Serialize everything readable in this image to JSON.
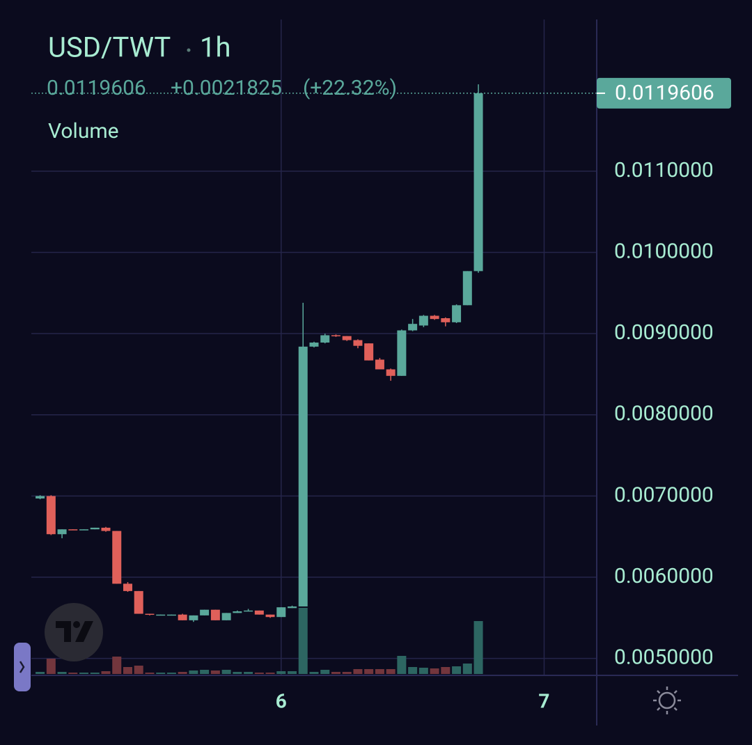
{
  "chart_data": {
    "type": "candlestick",
    "title": "USD/TWT",
    "interval": "1h",
    "change": {
      "value": 0.0021825,
      "label": "+0.0021825"
    },
    "change_percent": {
      "value": 22.32,
      "label": "(+22.32%)"
    },
    "volume_label": "Volume",
    "x": [
      5.0833,
      5.125,
      5.1667,
      5.2083,
      5.25,
      5.2917,
      5.3333,
      5.375,
      5.4167,
      5.4583,
      5.5,
      5.5417,
      5.5833,
      5.625,
      5.6667,
      5.7083,
      5.75,
      5.7917,
      5.8333,
      5.875,
      5.9167,
      5.9583,
      6,
      6.0417,
      6.0833,
      6.125,
      6.1667,
      6.2083,
      6.25,
      6.2917,
      6.3333,
      6.375,
      6.4167,
      6.4583,
      6.5,
      6.5417,
      6.5833,
      6.625,
      6.6667,
      6.7083,
      6.75
    ],
    "open": [
      0.00697,
      0.007,
      0.00653,
      0.00659,
      0.00658,
      0.00659,
      0.00661,
      0.00657,
      0.00592,
      0.00583,
      0.00555,
      0.00553,
      0.00553,
      0.00554,
      0.00547,
      0.00553,
      0.0056,
      0.00547,
      0.00556,
      0.00558,
      0.00559,
      0.00554,
      0.00551,
      0.00562,
      0.00564,
      0.00884,
      0.00889,
      0.00898,
      0.00897,
      0.00892,
      0.00888,
      0.00868,
      0.00856,
      0.00848,
      0.00904,
      0.0091,
      0.00922,
      0.00919,
      0.00914,
      0.00935,
      0.00977
    ],
    "high": [
      0.00701,
      0.00701,
      0.00659,
      0.00659,
      0.00659,
      0.00661,
      0.00662,
      0.00657,
      0.00594,
      0.00583,
      0.00555,
      0.00554,
      0.00554,
      0.00555,
      0.00553,
      0.0056,
      0.0056,
      0.00556,
      0.00559,
      0.00561,
      0.00559,
      0.00554,
      0.00563,
      0.00565,
      0.00938,
      0.0089,
      0.009,
      0.00899,
      0.00897,
      0.00893,
      0.00888,
      0.0087,
      0.00857,
      0.00905,
      0.00918,
      0.00923,
      0.00923,
      0.0092,
      0.00936,
      0.00977,
      0.01207
    ],
    "low": [
      0.00696,
      0.00652,
      0.00648,
      0.00658,
      0.00658,
      0.00659,
      0.00656,
      0.00592,
      0.00582,
      0.00555,
      0.00553,
      0.00553,
      0.00553,
      0.00547,
      0.00545,
      0.00553,
      0.00547,
      0.00547,
      0.00556,
      0.00558,
      0.00554,
      0.0055,
      0.00551,
      0.00562,
      0.00564,
      0.00883,
      0.00888,
      0.00896,
      0.00891,
      0.00882,
      0.00867,
      0.00856,
      0.00842,
      0.00848,
      0.00903,
      0.00908,
      0.00917,
      0.00909,
      0.00913,
      0.00935,
      0.00975
    ],
    "close": [
      0.007,
      0.00653,
      0.00659,
      0.00658,
      0.00659,
      0.00661,
      0.00657,
      0.00592,
      0.00583,
      0.00555,
      0.00554,
      0.00554,
      0.00554,
      0.00547,
      0.00553,
      0.0056,
      0.00547,
      0.00556,
      0.00558,
      0.00559,
      0.00554,
      0.00551,
      0.00563,
      0.00564,
      0.00884,
      0.00889,
      0.00898,
      0.00897,
      0.00892,
      0.00885,
      0.00867,
      0.00856,
      0.00848,
      0.00904,
      0.00912,
      0.00922,
      0.00918,
      0.00914,
      0.00935,
      0.00977,
      0.0119606
    ],
    "volume": [
      3,
      22,
      3,
      2,
      2,
      2,
      4,
      25,
      10,
      12,
      2,
      2,
      2,
      3,
      5,
      6,
      5,
      6,
      3,
      3,
      2,
      2,
      4,
      4,
      95,
      3,
      6,
      3,
      3,
      7,
      7,
      7,
      7,
      26,
      10,
      9,
      8,
      10,
      11,
      15,
      76
    ],
    "up_color": "#5aa89b",
    "down_color": "#e0605a",
    "volume_up_color": "#2d6662",
    "volume_down_color": "#73363d",
    "xlim": [
      5.05,
      7.2
    ],
    "xticks": [
      6,
      7
    ],
    "ylim": [
      0.0048,
      0.0128
    ],
    "yticks": [
      {
        "value": 0.005,
        "label": "0.0050000"
      },
      {
        "value": 0.006,
        "label": "0.0060000"
      },
      {
        "value": 0.007,
        "label": "0.0070000"
      },
      {
        "value": 0.008,
        "label": "0.0080000"
      },
      {
        "value": 0.009,
        "label": "0.0090000"
      },
      {
        "value": 0.01,
        "label": "0.0100000"
      },
      {
        "value": 0.011,
        "label": "0.0110000"
      }
    ],
    "grid": true
  }
}
